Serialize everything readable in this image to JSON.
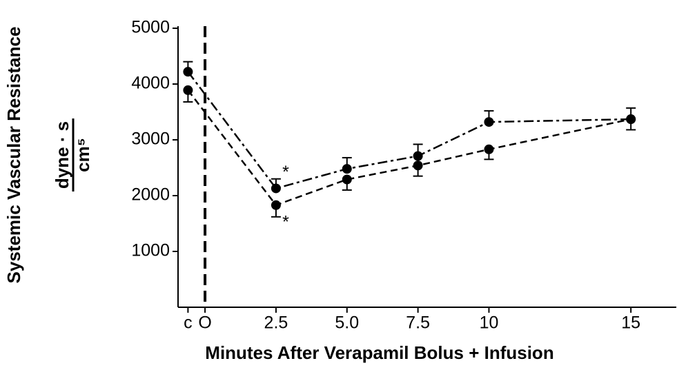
{
  "chart_data": {
    "type": "line",
    "y_label": "Systemic Vascular Resistance",
    "y_unit_numerator": "dyne · s",
    "y_unit_denominator": "cm⁵",
    "x_label": "Minutes After Verapamil Bolus + Infusion",
    "x": [
      -0.6,
      2.5,
      5,
      7.5,
      10,
      15
    ],
    "series": [
      {
        "style": "dashdot",
        "color": "#000000",
        "error_side": "up",
        "values": [
          4220,
          2130,
          2480,
          2710,
          3320,
          3370
        ],
        "errors": [
          180,
          170,
          200,
          210,
          200,
          200
        ]
      },
      {
        "style": "dashed",
        "color": "#000000",
        "error_side": "down",
        "values": [
          3890,
          1830,
          2290,
          2540,
          2830,
          3370
        ],
        "errors": [
          210,
          210,
          190,
          190,
          180,
          190
        ]
      }
    ],
    "annotations": [
      "*",
      "*"
    ],
    "xlim": [
      -0.95,
      16.6
    ],
    "ylim": [
      0,
      5000
    ],
    "xticks": [
      {
        "value": -0.6,
        "label": "c"
      },
      {
        "value": 0,
        "label": "O"
      },
      2.5,
      {
        "value": 5,
        "label": "5.0"
      },
      7.5,
      10,
      15
    ],
    "yticks": [
      1000,
      2000,
      3000,
      4000,
      5000
    ]
  }
}
